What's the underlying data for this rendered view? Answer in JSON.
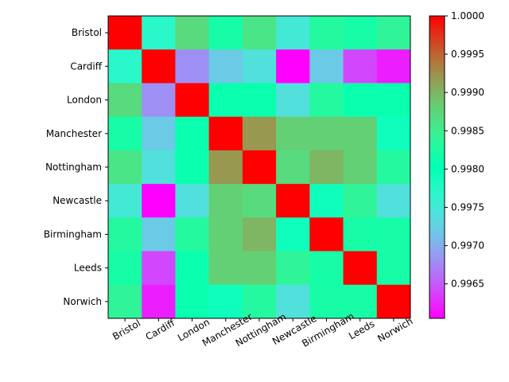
{
  "chart_data": {
    "type": "heatmap",
    "colormap": "rainbow",
    "categories": [
      "Bristol",
      "Cardiff",
      "London",
      "Manchester",
      "Nottingham",
      "Newcastle",
      "Birmingham",
      "Leeds",
      "Norwich"
    ],
    "values": [
      [
        1.0,
        0.9977,
        0.9987,
        0.9982,
        0.9986,
        0.9975,
        0.9983,
        0.9982,
        0.9984
      ],
      [
        0.9977,
        1.0,
        0.9968,
        0.9972,
        0.9974,
        0.99605,
        0.9972,
        0.9964,
        0.9962
      ],
      [
        0.9987,
        0.9968,
        1.0,
        0.9981,
        0.9981,
        0.9974,
        0.9983,
        0.9981,
        0.9981
      ],
      [
        0.9982,
        0.9972,
        0.9981,
        1.0,
        0.9992,
        0.9988,
        0.9988,
        0.9988,
        0.9979
      ],
      [
        0.9986,
        0.9974,
        0.9981,
        0.9992,
        1.0,
        0.9987,
        0.999,
        0.9988,
        0.9983
      ],
      [
        0.9975,
        0.99605,
        0.9974,
        0.9988,
        0.9987,
        1.0,
        0.9979,
        0.9984,
        0.9974
      ],
      [
        0.9983,
        0.9972,
        0.9983,
        0.9988,
        0.999,
        0.9979,
        1.0,
        0.9982,
        0.9982
      ],
      [
        0.9982,
        0.9964,
        0.9981,
        0.9988,
        0.9988,
        0.9984,
        0.9982,
        1.0,
        0.9982
      ],
      [
        0.9984,
        0.9962,
        0.9981,
        0.9979,
        0.9983,
        0.9974,
        0.9982,
        0.9982,
        1.0
      ]
    ],
    "vmin": 0.99605,
    "vmax": 1.0,
    "colorbar_ticks": [
      "0.9965",
      "0.9970",
      "0.9975",
      "0.9980",
      "0.9985",
      "0.9990",
      "0.9995",
      "1.0000"
    ],
    "colorbar_tick_values": [
      0.9965,
      0.997,
      0.9975,
      0.998,
      0.9985,
      0.999,
      0.9995,
      1.0
    ]
  }
}
